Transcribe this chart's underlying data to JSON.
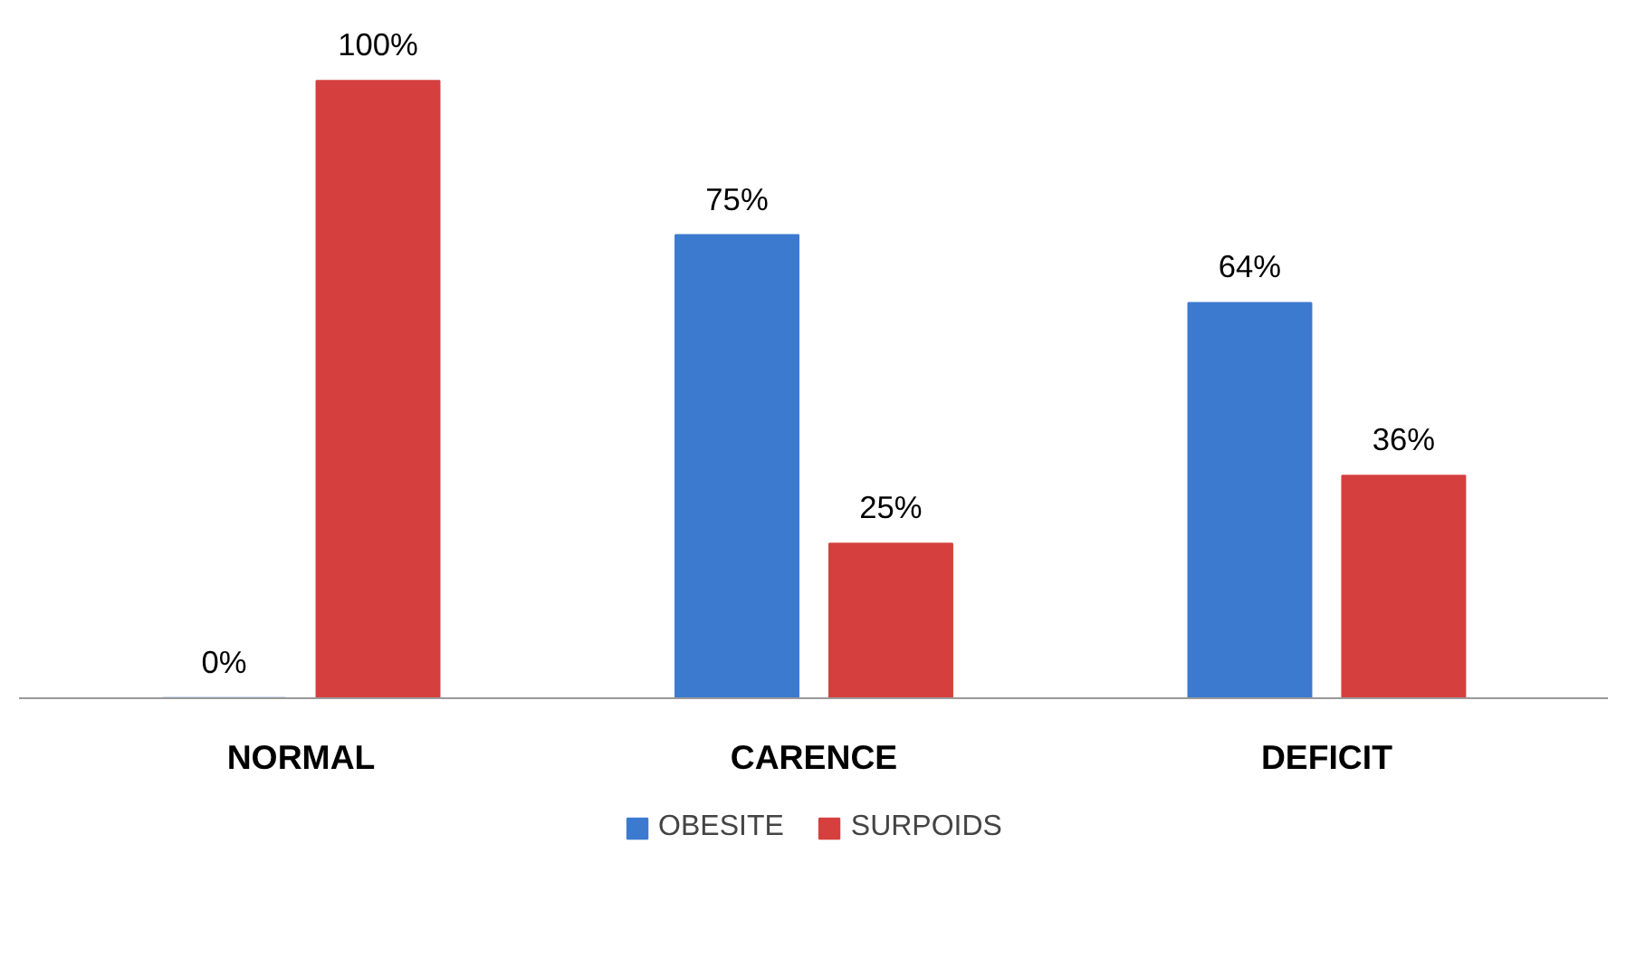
{
  "chart_data": {
    "type": "bar",
    "categories": [
      "NORMAL",
      "CARENCE",
      "DEFICIT"
    ],
    "series": [
      {
        "name": "OBESITE",
        "color": "#3c7ad0",
        "values": [
          0,
          75,
          64
        ],
        "value_labels": [
          "0%",
          "75%",
          "64%"
        ]
      },
      {
        "name": "SURPOIDS",
        "color": "#d5403e",
        "values": [
          100,
          25,
          36
        ],
        "value_labels": [
          "100%",
          "25%",
          "36%"
        ]
      }
    ],
    "legend": "bottom"
  }
}
